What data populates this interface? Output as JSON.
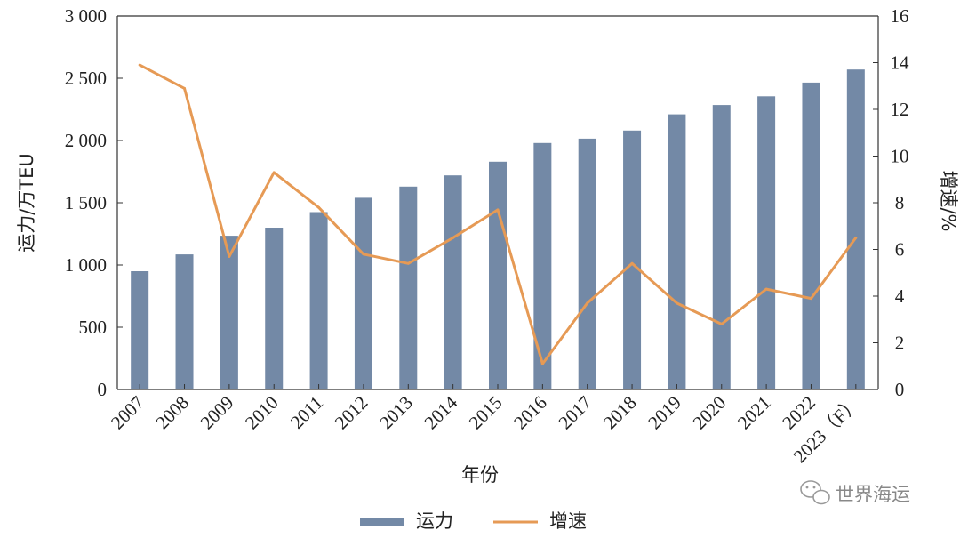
{
  "chart_data": {
    "type": "bar+line",
    "categories": [
      "2007",
      "2008",
      "2009",
      "2010",
      "2011",
      "2012",
      "2013",
      "2014",
      "2015",
      "2016",
      "2017",
      "2018",
      "2019",
      "2020",
      "2021",
      "2022",
      "2023（F）"
    ],
    "series": [
      {
        "name": "运力",
        "type": "bar",
        "axis": "left",
        "values": [
          950,
          1085,
          1235,
          1300,
          1425,
          1540,
          1630,
          1720,
          1830,
          1980,
          2015,
          2080,
          2210,
          2285,
          2355,
          2465,
          2570
        ]
      },
      {
        "name": "增速",
        "type": "line",
        "axis": "right",
        "values": [
          13.9,
          12.9,
          5.7,
          9.3,
          7.8,
          5.8,
          5.4,
          6.5,
          7.7,
          1.1,
          3.7,
          5.4,
          3.7,
          2.8,
          4.3,
          3.9,
          6.5
        ]
      }
    ],
    "xlabel": "年份",
    "ylabel": "运力/万TEU",
    "y2label": "增速/%",
    "ylim": [
      0,
      3000
    ],
    "y2lim": [
      0,
      16
    ],
    "yticks": [
      "0",
      "500",
      "1 000",
      "1 500",
      "2 000",
      "2 500",
      "3 000"
    ],
    "y2ticks": [
      "0",
      "2",
      "4",
      "6",
      "8",
      "10",
      "12",
      "14",
      "16"
    ],
    "legend": {
      "placement": "bottom-center",
      "items": [
        "运力",
        "增速"
      ]
    },
    "grid": false,
    "colors": {
      "bar": "#7389a6",
      "line": "#e69a55",
      "axis": "#333333"
    }
  },
  "watermark": {
    "text": "世界海运",
    "icon": "wechat-icon"
  }
}
